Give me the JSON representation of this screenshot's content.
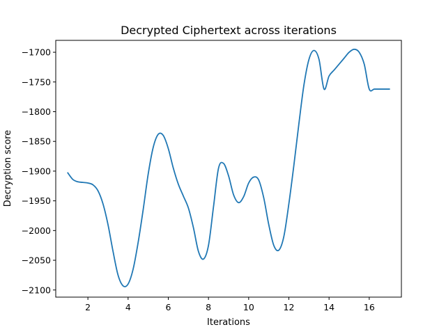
{
  "chart_data": {
    "type": "line",
    "title": "Decrypted Ciphertext across iterations",
    "xlabel": "Iterations",
    "ylabel": "Decryption score",
    "xlim": [
      0.4,
      17.6
    ],
    "ylim": [
      -2112,
      -1680
    ],
    "xticks": [
      2,
      4,
      6,
      8,
      10,
      12,
      14,
      16
    ],
    "yticks": [
      -2100,
      -2050,
      -2000,
      -1950,
      -1900,
      -1850,
      -1800,
      -1750,
      -1700
    ],
    "xtick_labels": [
      "2",
      "4",
      "6",
      "8",
      "10",
      "12",
      "14",
      "16"
    ],
    "ytick_labels": [
      "−2100",
      "−2050",
      "−2000",
      "−1950",
      "−1900",
      "−1850",
      "−1800",
      "−1750",
      "−1700"
    ],
    "grid": false,
    "series": [
      {
        "color": "#1f77b4",
        "x": [
          1.0,
          1.25,
          1.5,
          1.75,
          2.0,
          2.25,
          2.5,
          2.75,
          3.0,
          3.25,
          3.5,
          3.75,
          4.0,
          4.25,
          4.5,
          4.75,
          5.0,
          5.25,
          5.5,
          5.75,
          6.0,
          6.25,
          6.5,
          6.75,
          7.0,
          7.25,
          7.5,
          7.75,
          8.0,
          8.25,
          8.5,
          8.75,
          9.0,
          9.25,
          9.5,
          9.75,
          10.0,
          10.25,
          10.5,
          10.75,
          11.0,
          11.25,
          11.5,
          11.75,
          12.0,
          12.25,
          12.5,
          12.75,
          13.0,
          13.25,
          13.5,
          13.75,
          14.0,
          14.25,
          14.5,
          14.75,
          15.0,
          15.25,
          15.5,
          15.75,
          16.0,
          16.25,
          16.5,
          16.75,
          17.0
        ],
        "y": [
          -1903,
          -1914,
          -1918,
          -1919,
          -1920,
          -1923,
          -1933,
          -1955,
          -1990,
          -2035,
          -2075,
          -2093,
          -2090,
          -2065,
          -2020,
          -1965,
          -1905,
          -1860,
          -1838,
          -1840,
          -1862,
          -1895,
          -1922,
          -1942,
          -1962,
          -1995,
          -2035,
          -2048,
          -2025,
          -1960,
          -1895,
          -1887,
          -1908,
          -1940,
          -1953,
          -1943,
          -1920,
          -1910,
          -1915,
          -1945,
          -1990,
          -2025,
          -2033,
          -2010,
          -1955,
          -1890,
          -1820,
          -1755,
          -1712,
          -1697,
          -1712,
          -1762,
          -1740,
          -1730,
          -1720,
          -1710,
          -1700,
          -1695,
          -1700,
          -1720,
          -1762,
          -1762,
          -1762,
          -1762,
          -1762
        ]
      }
    ]
  }
}
